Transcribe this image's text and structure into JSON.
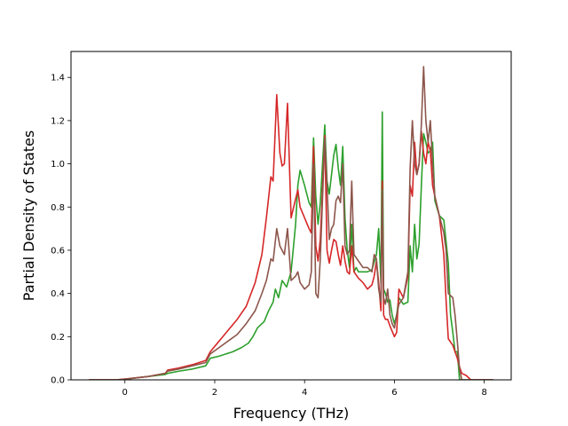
{
  "chart_data": {
    "type": "line",
    "title": "",
    "xlabel": "Frequency (THz)",
    "ylabel": "Partial Density of States",
    "xlim": [
      -1.2,
      8.6
    ],
    "ylim": [
      0.0,
      1.52
    ],
    "xticks": [
      0,
      2,
      4,
      6,
      8
    ],
    "xtick_labels": [
      "0",
      "2",
      "4",
      "6",
      "8"
    ],
    "yticks": [
      0.0,
      0.2,
      0.4,
      0.6,
      0.8,
      1.0,
      1.2,
      1.4
    ],
    "ytick_labels": [
      "0.0",
      "0.2",
      "0.4",
      "0.6",
      "0.8",
      "1.0",
      "1.2",
      "1.4"
    ],
    "grid": false,
    "legend": "none",
    "colors": {
      "blue": "#1f77b4",
      "orange": "#ff7f0e",
      "green": "#2ca02c",
      "red": "#d62728",
      "brown": "#8c564b"
    },
    "series": [
      {
        "color": "#2ca02c",
        "points": [
          [
            -0.8,
            0.0
          ],
          [
            -0.2,
            0.0
          ],
          [
            0.0,
            0.003
          ],
          [
            0.5,
            0.015
          ],
          [
            0.9,
            0.025
          ],
          [
            0.95,
            0.03
          ],
          [
            1.2,
            0.04
          ],
          [
            1.5,
            0.05
          ],
          [
            1.8,
            0.065
          ],
          [
            1.9,
            0.1
          ],
          [
            2.1,
            0.11
          ],
          [
            2.4,
            0.13
          ],
          [
            2.6,
            0.15
          ],
          [
            2.75,
            0.17
          ],
          [
            2.85,
            0.2
          ],
          [
            2.95,
            0.24
          ],
          [
            3.1,
            0.27
          ],
          [
            3.2,
            0.32
          ],
          [
            3.3,
            0.36
          ],
          [
            3.35,
            0.42
          ],
          [
            3.42,
            0.38
          ],
          [
            3.5,
            0.46
          ],
          [
            3.6,
            0.43
          ],
          [
            3.7,
            0.5
          ],
          [
            3.8,
            0.72
          ],
          [
            3.85,
            0.9
          ],
          [
            3.9,
            0.97
          ],
          [
            4.0,
            0.9
          ],
          [
            4.1,
            0.82
          ],
          [
            4.15,
            0.8
          ],
          [
            4.2,
            1.12
          ],
          [
            4.25,
            0.85
          ],
          [
            4.3,
            0.72
          ],
          [
            4.35,
            0.82
          ],
          [
            4.45,
            1.18
          ],
          [
            4.5,
            0.92
          ],
          [
            4.55,
            0.86
          ],
          [
            4.6,
            0.95
          ],
          [
            4.65,
            1.04
          ],
          [
            4.7,
            1.09
          ],
          [
            4.75,
            0.98
          ],
          [
            4.8,
            0.9
          ],
          [
            4.85,
            1.08
          ],
          [
            4.9,
            0.75
          ],
          [
            4.95,
            0.6
          ],
          [
            5.0,
            0.52
          ],
          [
            5.05,
            0.72
          ],
          [
            5.1,
            0.5
          ],
          [
            5.15,
            0.52
          ],
          [
            5.2,
            0.5
          ],
          [
            5.3,
            0.5
          ],
          [
            5.4,
            0.5
          ],
          [
            5.5,
            0.51
          ],
          [
            5.6,
            0.58
          ],
          [
            5.65,
            0.7
          ],
          [
            5.7,
            0.45
          ],
          [
            5.73,
            1.24
          ],
          [
            5.76,
            0.42
          ],
          [
            5.8,
            0.4
          ],
          [
            5.85,
            0.36
          ],
          [
            5.9,
            0.37
          ],
          [
            5.95,
            0.3
          ],
          [
            6.0,
            0.26
          ],
          [
            6.05,
            0.3
          ],
          [
            6.1,
            0.38
          ],
          [
            6.2,
            0.35
          ],
          [
            6.3,
            0.36
          ],
          [
            6.35,
            0.62
          ],
          [
            6.4,
            0.5
          ],
          [
            6.45,
            0.72
          ],
          [
            6.5,
            0.56
          ],
          [
            6.55,
            0.63
          ],
          [
            6.6,
            0.9
          ],
          [
            6.65,
            1.14
          ],
          [
            6.7,
            1.1
          ],
          [
            6.75,
            1.05
          ],
          [
            6.8,
            1.06
          ],
          [
            6.85,
            1.1
          ],
          [
            6.9,
            0.83
          ],
          [
            7.0,
            0.76
          ],
          [
            7.1,
            0.74
          ],
          [
            7.2,
            0.54
          ],
          [
            7.25,
            0.3
          ],
          [
            7.3,
            0.22
          ],
          [
            7.35,
            0.13
          ],
          [
            7.4,
            0.13
          ],
          [
            7.45,
            0.0
          ],
          [
            8.2,
            0.0
          ]
        ]
      },
      {
        "color": "#d62728",
        "points": [
          [
            -0.8,
            0.0
          ],
          [
            -0.2,
            0.0
          ],
          [
            0.0,
            0.004
          ],
          [
            0.5,
            0.015
          ],
          [
            0.9,
            0.03
          ],
          [
            0.95,
            0.045
          ],
          [
            1.2,
            0.055
          ],
          [
            1.5,
            0.07
          ],
          [
            1.8,
            0.09
          ],
          [
            1.9,
            0.13
          ],
          [
            2.1,
            0.18
          ],
          [
            2.3,
            0.23
          ],
          [
            2.5,
            0.28
          ],
          [
            2.7,
            0.34
          ],
          [
            2.9,
            0.45
          ],
          [
            3.05,
            0.58
          ],
          [
            3.15,
            0.75
          ],
          [
            3.25,
            0.94
          ],
          [
            3.3,
            0.92
          ],
          [
            3.38,
            1.32
          ],
          [
            3.45,
            1.05
          ],
          [
            3.5,
            0.99
          ],
          [
            3.55,
            1.0
          ],
          [
            3.62,
            1.28
          ],
          [
            3.7,
            0.75
          ],
          [
            3.78,
            0.82
          ],
          [
            3.85,
            0.88
          ],
          [
            3.9,
            0.8
          ],
          [
            4.0,
            0.75
          ],
          [
            4.1,
            0.7
          ],
          [
            4.15,
            0.68
          ],
          [
            4.2,
            1.08
          ],
          [
            4.25,
            0.62
          ],
          [
            4.3,
            0.55
          ],
          [
            4.35,
            0.65
          ],
          [
            4.45,
            1.13
          ],
          [
            4.5,
            0.6
          ],
          [
            4.55,
            0.54
          ],
          [
            4.6,
            0.6
          ],
          [
            4.65,
            0.65
          ],
          [
            4.7,
            0.64
          ],
          [
            4.75,
            0.58
          ],
          [
            4.8,
            0.53
          ],
          [
            4.85,
            0.62
          ],
          [
            4.9,
            0.55
          ],
          [
            4.95,
            0.5
          ],
          [
            5.0,
            0.49
          ],
          [
            5.05,
            0.62
          ],
          [
            5.1,
            0.5
          ],
          [
            5.2,
            0.47
          ],
          [
            5.3,
            0.45
          ],
          [
            5.4,
            0.42
          ],
          [
            5.5,
            0.44
          ],
          [
            5.55,
            0.48
          ],
          [
            5.6,
            0.55
          ],
          [
            5.65,
            0.45
          ],
          [
            5.7,
            0.32
          ],
          [
            5.73,
            0.92
          ],
          [
            5.76,
            0.3
          ],
          [
            5.8,
            0.28
          ],
          [
            5.85,
            0.28
          ],
          [
            5.9,
            0.25
          ],
          [
            6.0,
            0.2
          ],
          [
            6.05,
            0.22
          ],
          [
            6.1,
            0.42
          ],
          [
            6.2,
            0.38
          ],
          [
            6.3,
            0.48
          ],
          [
            6.35,
            0.9
          ],
          [
            6.4,
            0.85
          ],
          [
            6.45,
            1.1
          ],
          [
            6.5,
            0.95
          ],
          [
            6.55,
            1.0
          ],
          [
            6.6,
            1.15
          ],
          [
            6.65,
            1.05
          ],
          [
            6.7,
            1.0
          ],
          [
            6.75,
            1.1
          ],
          [
            6.8,
            1.06
          ],
          [
            6.85,
            0.9
          ],
          [
            6.9,
            0.85
          ],
          [
            7.0,
            0.76
          ],
          [
            7.1,
            0.58
          ],
          [
            7.15,
            0.37
          ],
          [
            7.2,
            0.19
          ],
          [
            7.3,
            0.16
          ],
          [
            7.4,
            0.1
          ],
          [
            7.45,
            0.06
          ],
          [
            7.5,
            0.03
          ],
          [
            7.6,
            0.02
          ],
          [
            7.7,
            0.0
          ],
          [
            8.2,
            0.0
          ]
        ]
      },
      {
        "color": "#8c564b",
        "points": [
          [
            -0.8,
            0.0
          ],
          [
            -0.2,
            0.0
          ],
          [
            0.0,
            0.003
          ],
          [
            0.5,
            0.015
          ],
          [
            0.9,
            0.03
          ],
          [
            0.95,
            0.04
          ],
          [
            1.2,
            0.05
          ],
          [
            1.5,
            0.065
          ],
          [
            1.8,
            0.08
          ],
          [
            1.9,
            0.12
          ],
          [
            2.1,
            0.15
          ],
          [
            2.3,
            0.18
          ],
          [
            2.5,
            0.21
          ],
          [
            2.7,
            0.26
          ],
          [
            2.9,
            0.32
          ],
          [
            3.05,
            0.4
          ],
          [
            3.15,
            0.46
          ],
          [
            3.25,
            0.56
          ],
          [
            3.3,
            0.55
          ],
          [
            3.38,
            0.7
          ],
          [
            3.45,
            0.62
          ],
          [
            3.55,
            0.58
          ],
          [
            3.62,
            0.7
          ],
          [
            3.7,
            0.46
          ],
          [
            3.8,
            0.48
          ],
          [
            3.85,
            0.5
          ],
          [
            3.9,
            0.45
          ],
          [
            4.0,
            0.42
          ],
          [
            4.1,
            0.44
          ],
          [
            4.15,
            0.5
          ],
          [
            4.2,
            1.0
          ],
          [
            4.25,
            0.4
          ],
          [
            4.3,
            0.38
          ],
          [
            4.35,
            0.56
          ],
          [
            4.45,
            1.12
          ],
          [
            4.5,
            0.9
          ],
          [
            4.55,
            0.65
          ],
          [
            4.6,
            0.7
          ],
          [
            4.65,
            0.72
          ],
          [
            4.7,
            0.83
          ],
          [
            4.75,
            0.85
          ],
          [
            4.8,
            0.82
          ],
          [
            4.85,
            1.0
          ],
          [
            4.9,
            0.62
          ],
          [
            4.95,
            0.58
          ],
          [
            5.0,
            0.6
          ],
          [
            5.05,
            0.92
          ],
          [
            5.1,
            0.58
          ],
          [
            5.2,
            0.55
          ],
          [
            5.3,
            0.52
          ],
          [
            5.4,
            0.52
          ],
          [
            5.5,
            0.5
          ],
          [
            5.55,
            0.58
          ],
          [
            5.6,
            0.56
          ],
          [
            5.65,
            0.42
          ],
          [
            5.7,
            0.36
          ],
          [
            5.73,
            0.88
          ],
          [
            5.76,
            0.38
          ],
          [
            5.8,
            0.35
          ],
          [
            5.85,
            0.42
          ],
          [
            5.9,
            0.3
          ],
          [
            5.95,
            0.26
          ],
          [
            6.0,
            0.24
          ],
          [
            6.05,
            0.3
          ],
          [
            6.1,
            0.35
          ],
          [
            6.2,
            0.38
          ],
          [
            6.3,
            0.5
          ],
          [
            6.35,
            0.98
          ],
          [
            6.4,
            1.2
          ],
          [
            6.45,
            1.0
          ],
          [
            6.5,
            0.95
          ],
          [
            6.55,
            1.0
          ],
          [
            6.6,
            1.18
          ],
          [
            6.65,
            1.45
          ],
          [
            6.7,
            1.2
          ],
          [
            6.75,
            1.1
          ],
          [
            6.8,
            1.2
          ],
          [
            6.85,
            1.0
          ],
          [
            6.9,
            0.85
          ],
          [
            7.0,
            0.76
          ],
          [
            7.1,
            0.68
          ],
          [
            7.15,
            0.6
          ],
          [
            7.2,
            0.4
          ],
          [
            7.3,
            0.38
          ],
          [
            7.35,
            0.3
          ],
          [
            7.4,
            0.18
          ],
          [
            7.45,
            0.05
          ],
          [
            7.5,
            0.0
          ],
          [
            8.2,
            0.0
          ]
        ]
      }
    ]
  }
}
